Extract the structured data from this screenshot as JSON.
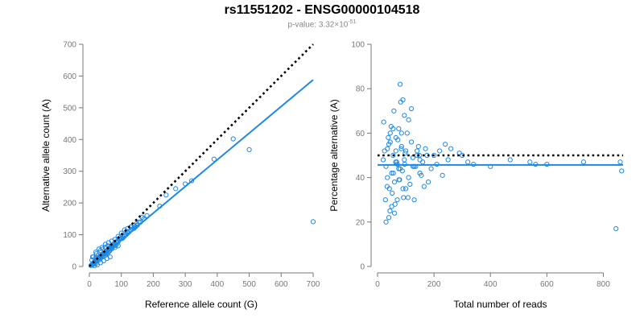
{
  "header": {
    "title": "rs11551202 - ENSG00000104518",
    "pvalue_prefix": "p-value: 3.32×10",
    "pvalue_exponent": "-51"
  },
  "colors": {
    "points": "#1e88e5",
    "fit": "#1e88e5",
    "reference": "#000000",
    "axis": "#777777"
  },
  "chart_data": [
    {
      "type": "scatter",
      "xlabel": "Reference allele count (G)",
      "ylabel": "Alternative allele count (A)",
      "xlim": [
        0,
        700
      ],
      "ylim": [
        0,
        700
      ],
      "xticks": [
        0,
        100,
        200,
        300,
        400,
        500,
        600,
        700
      ],
      "yticks": [
        0,
        100,
        200,
        300,
        400,
        500,
        600,
        700
      ],
      "fit_line": {
        "x": [
          0,
          700
        ],
        "y": [
          0,
          588
        ]
      },
      "reference_line": {
        "x": [
          0,
          700
        ],
        "y": [
          0,
          700
        ]
      },
      "points": {
        "x": [
          5,
          8,
          10,
          12,
          14,
          15,
          18,
          20,
          22,
          25,
          28,
          30,
          32,
          35,
          38,
          40,
          42,
          45,
          48,
          50,
          52,
          55,
          58,
          60,
          62,
          65,
          68,
          70,
          72,
          75,
          78,
          80,
          82,
          85,
          88,
          90,
          95,
          100,
          105,
          110,
          115,
          120,
          125,
          130,
          135,
          140,
          145,
          150,
          160,
          170,
          180,
          8,
          12,
          18,
          22,
          28,
          35,
          42,
          50,
          58,
          65,
          75,
          85,
          95,
          15,
          25,
          35,
          45,
          55,
          65,
          10,
          20,
          30,
          40,
          50,
          60,
          70,
          80,
          90,
          100,
          110,
          120,
          130,
          140,
          20,
          30,
          40,
          50,
          60,
          70,
          80,
          90,
          12,
          16,
          24,
          32,
          44,
          52,
          64,
          72,
          84,
          102,
          118,
          132,
          148,
          155,
          165,
          220,
          240,
          270,
          300,
          320,
          390,
          450,
          500,
          700
        ],
        "y": [
          3,
          6,
          5,
          10,
          8,
          14,
          12,
          18,
          10,
          22,
          25,
          20,
          30,
          28,
          35,
          32,
          40,
          38,
          42,
          45,
          48,
          40,
          52,
          55,
          50,
          60,
          58,
          62,
          65,
          70,
          68,
          72,
          66,
          75,
          80,
          78,
          85,
          88,
          90,
          95,
          100,
          105,
          110,
          115,
          118,
          120,
          125,
          130,
          140,
          150,
          160,
          20,
          30,
          25,
          40,
          35,
          50,
          55,
          60,
          65,
          58,
          70,
          78,
          90,
          2,
          5,
          12,
          18,
          25,
          30,
          30,
          45,
          55,
          60,
          70,
          75,
          80,
          85,
          95,
          105,
          115,
          120,
          125,
          130,
          15,
          25,
          30,
          35,
          45,
          55,
          60,
          65,
          8,
          14,
          20,
          28,
          38,
          42,
          50,
          60,
          68,
          88,
          110,
          125,
          135,
          140,
          155,
          190,
          225,
          245,
          260,
          270,
          338,
          402,
          368,
          141
        ]
      }
    },
    {
      "type": "scatter",
      "xlabel": "Total number of reads",
      "ylabel": "Percentage alternative (A)",
      "xlim": [
        0,
        870
      ],
      "ylim": [
        0,
        100
      ],
      "xticks": [
        0,
        200,
        400,
        600,
        800
      ],
      "yticks": [
        0,
        20,
        40,
        60,
        80,
        100
      ],
      "fit_line": {
        "x": [
          0,
          870
        ],
        "y": [
          45.7,
          45.7
        ]
      },
      "reference_line": {
        "x": [
          0,
          870
        ],
        "y": [
          50,
          50
        ]
      },
      "points": {
        "x": [
          20,
          25,
          30,
          35,
          40,
          45,
          50,
          55,
          60,
          65,
          70,
          75,
          80,
          85,
          90,
          95,
          100,
          110,
          120,
          130,
          140,
          150,
          160,
          170,
          180,
          190,
          200,
          210,
          220,
          230,
          240,
          250,
          22,
          28,
          34,
          38,
          44,
          48,
          52,
          58,
          62,
          68,
          72,
          78,
          82,
          88,
          92,
          98,
          105,
          115,
          125,
          135,
          145,
          155,
          165,
          175,
          30,
          40,
          50,
          60,
          70,
          80,
          90,
          100,
          110,
          120,
          130,
          140,
          150,
          45,
          55,
          65,
          75,
          85,
          95,
          35,
          42,
          56,
          64,
          76,
          84,
          96,
          108,
          126,
          148,
          260,
          290,
          300,
          320,
          340,
          400,
          470,
          540,
          560,
          600,
          730,
          845,
          860,
          865
        ],
        "y": [
          48,
          52,
          45,
          40,
          55,
          60,
          42,
          50,
          38,
          58,
          46,
          62,
          44,
          54,
          35,
          48,
          52,
          40,
          56,
          45,
          50,
          42,
          47,
          53,
          38,
          44,
          50,
          46,
          52,
          41,
          55,
          48,
          65,
          30,
          36,
          58,
          25,
          63,
          33,
          70,
          28,
          47,
          57,
          39,
          74,
          43,
          31,
          51,
          60,
          37,
          49,
          45,
          54,
          41,
          36,
          50,
          20,
          22,
          27,
          24,
          30,
          82,
          75,
          35,
          66,
          71,
          30,
          52,
          48,
          56,
          62,
          52,
          44,
          60,
          68,
          53,
          35,
          42,
          47,
          39,
          53,
          46,
          31,
          45,
          50,
          53,
          51,
          50,
          47,
          46,
          45,
          48,
          47,
          46,
          46,
          47,
          17,
          47,
          43
        ]
      }
    }
  ]
}
